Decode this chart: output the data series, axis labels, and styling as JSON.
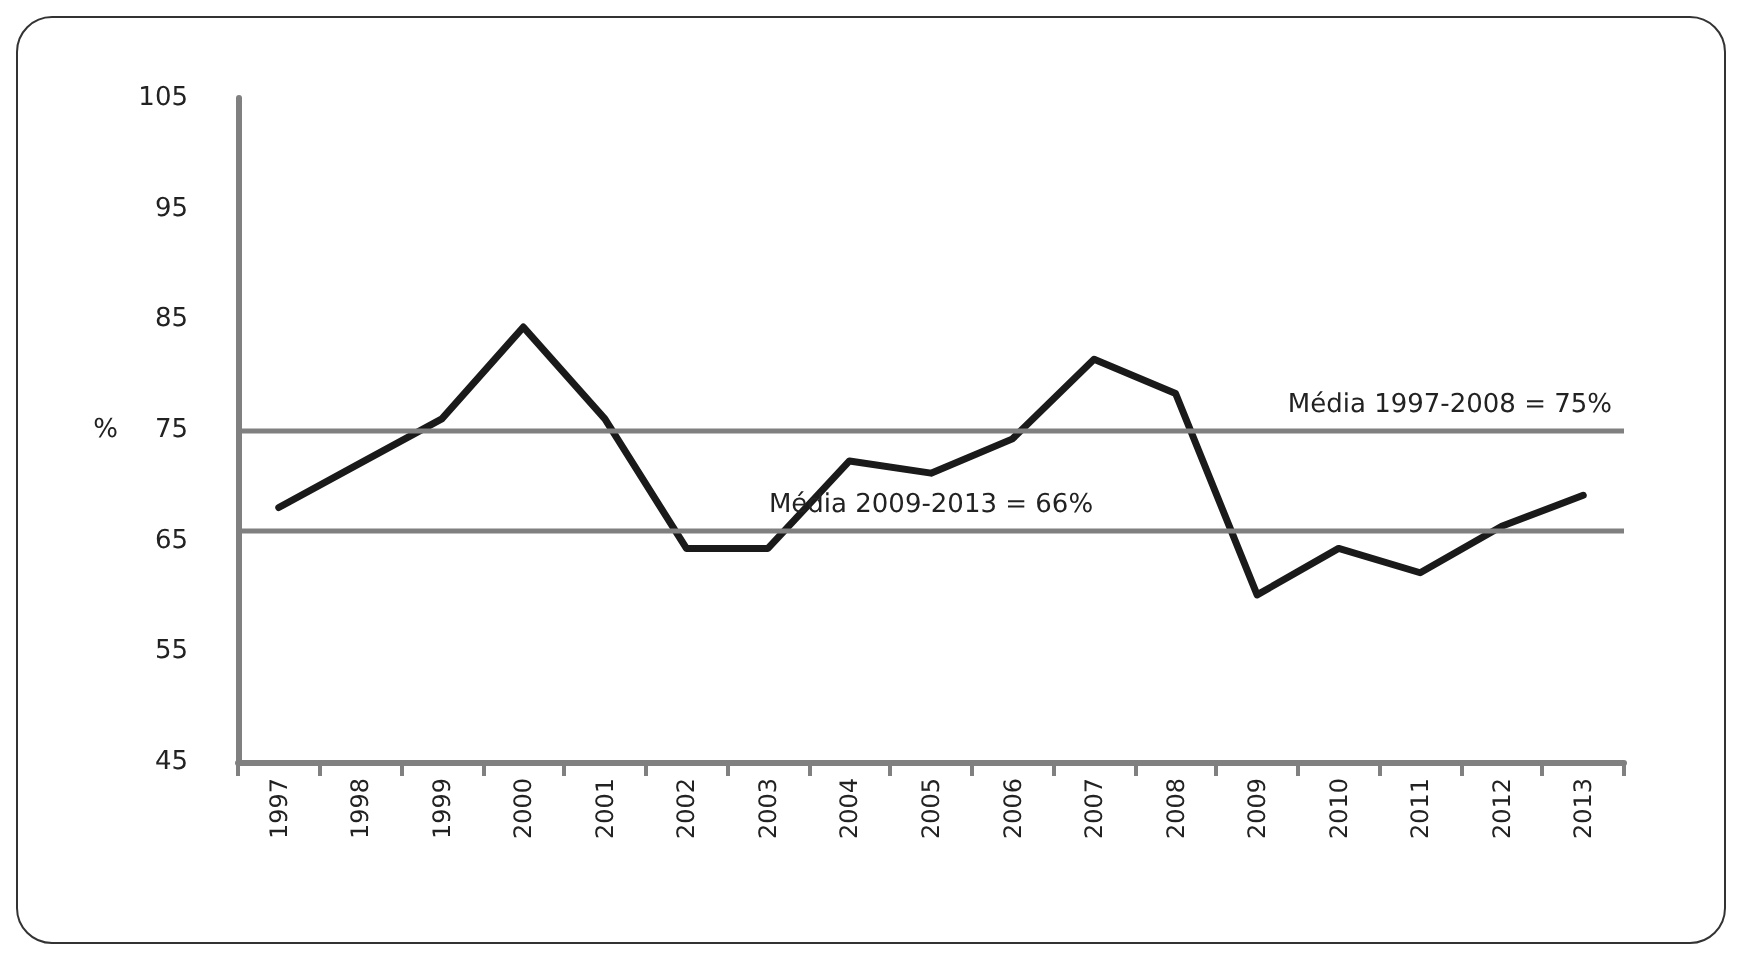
{
  "chart_data": {
    "type": "line",
    "ylabel": "%",
    "categories": [
      "1997",
      "1998",
      "1999",
      "2000",
      "2001",
      "2002",
      "2003",
      "2004",
      "2005",
      "2006",
      "2007",
      "2008",
      "2009",
      "2010",
      "2011",
      "2012",
      "2013"
    ],
    "series": [
      {
        "color": "#1a1a1a",
        "values": [
          68,
          72,
          76,
          84.3,
          76,
          64.3,
          64.3,
          72.2,
          71.1,
          74.2,
          81.4,
          78.3,
          60.1,
          64.3,
          62.1,
          66.3,
          69.1
        ]
      }
    ],
    "ref_lines": [
      {
        "axis": "y",
        "value": 75,
        "label": "Média 1997-2008 = 75%",
        "color": "#808080"
      },
      {
        "axis": "y",
        "value": 66,
        "label": "Média 2009-2013 = 66%",
        "color": "#808080"
      }
    ],
    "ylim": [
      45,
      105
    ],
    "yticks": [
      45,
      55,
      65,
      75,
      85,
      95,
      105
    ],
    "grid": false,
    "marker": "none",
    "line_style": "solid"
  }
}
